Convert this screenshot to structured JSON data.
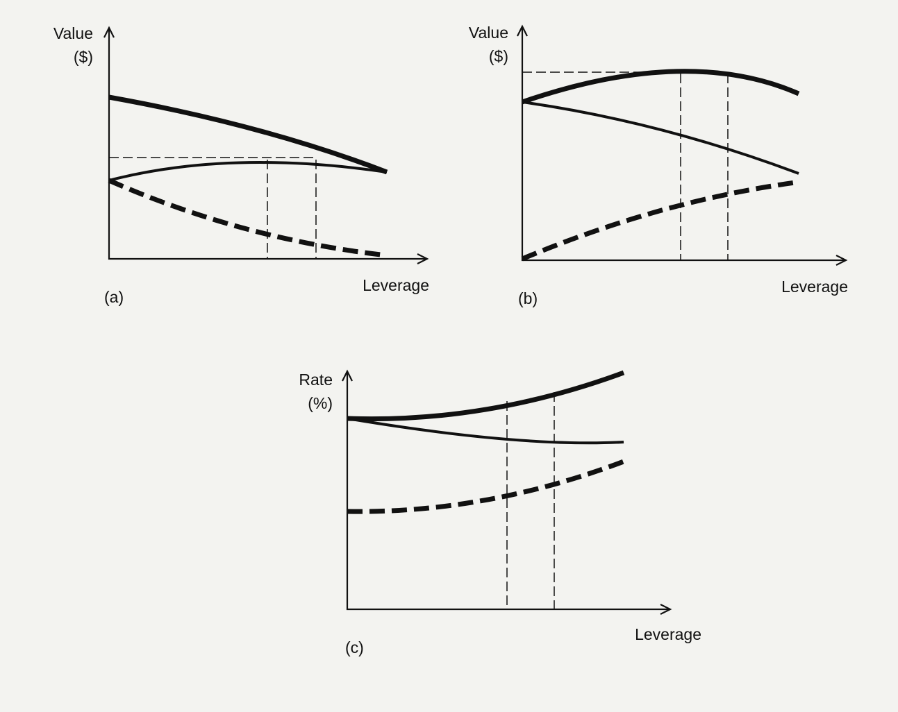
{
  "panels": [
    {
      "y_label": [
        "Value",
        "($)"
      ],
      "x_label": "Leverage",
      "caption": "(a)"
    },
    {
      "y_label": [
        "Value",
        "($)"
      ],
      "x_label": "Leverage",
      "caption": "(b)"
    },
    {
      "y_label": [
        "Rate",
        "(%)"
      ],
      "x_label": "Leverage",
      "caption": "(c)"
    }
  ]
}
